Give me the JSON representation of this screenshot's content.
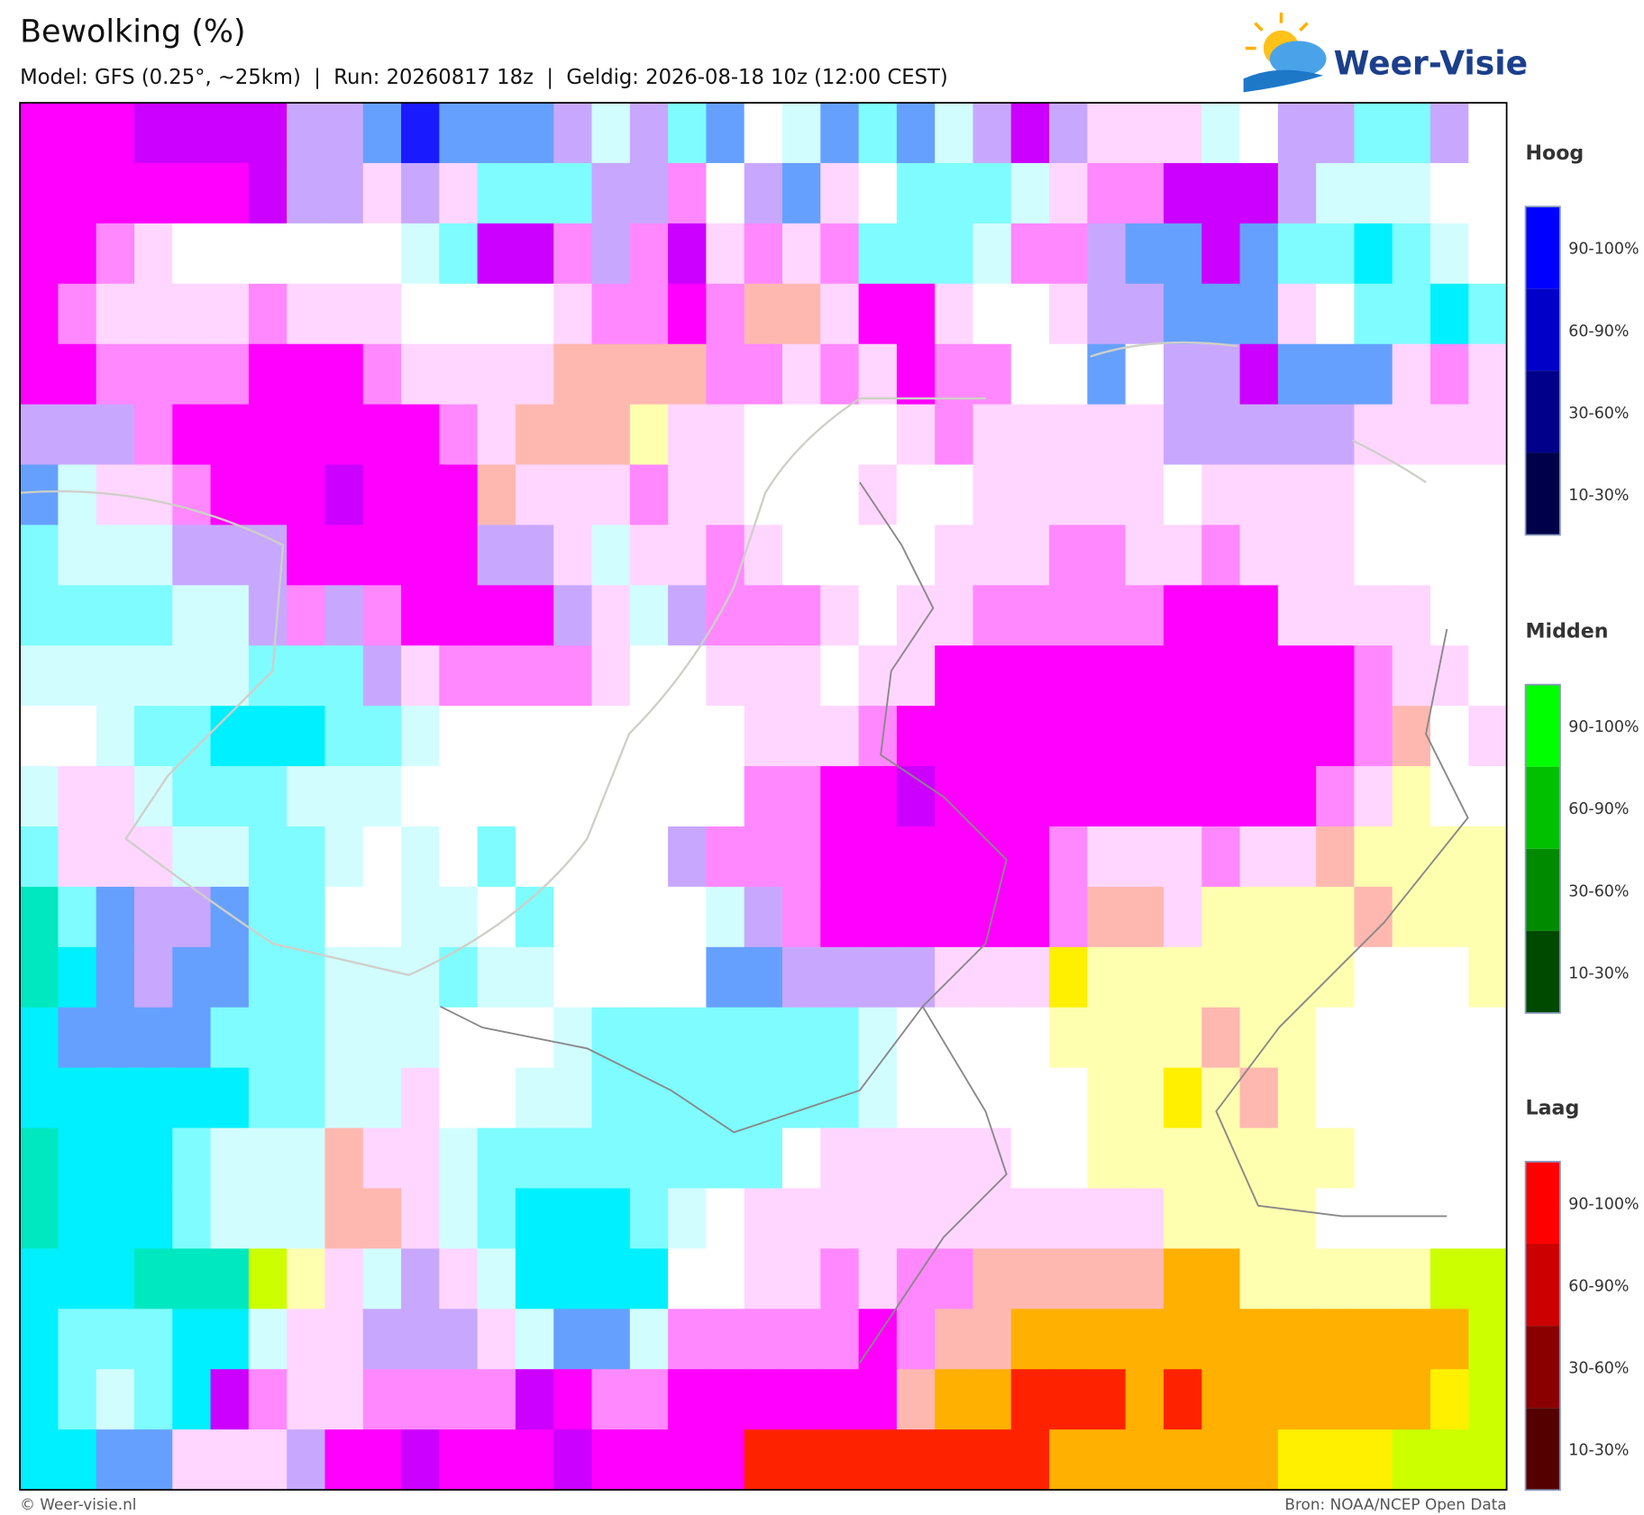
{
  "header": {
    "title": "Bewolking (%)",
    "subtitle": "Model: GFS (0.25°, ~25km)  |  Run: 20260817 18z  |  Geldig: 2026-08-18 10z (12:00 CEST)"
  },
  "logo": {
    "text": "Weer-Visie"
  },
  "legend": [
    {
      "title": "Hoog",
      "labels": [
        "90-100%",
        "60-90%",
        "30-60%",
        "10-30%"
      ]
    },
    {
      "title": "Midden",
      "labels": [
        "90-100%",
        "60-90%",
        "30-60%",
        "10-30%"
      ]
    },
    {
      "title": "Laag",
      "labels": [
        "90-100%",
        "60-90%",
        "30-60%",
        "10-30%"
      ]
    }
  ],
  "footer": {
    "left": "© Weer-visie.nl",
    "right": "Bron: NOAA/NCEP Open Data"
  }
}
